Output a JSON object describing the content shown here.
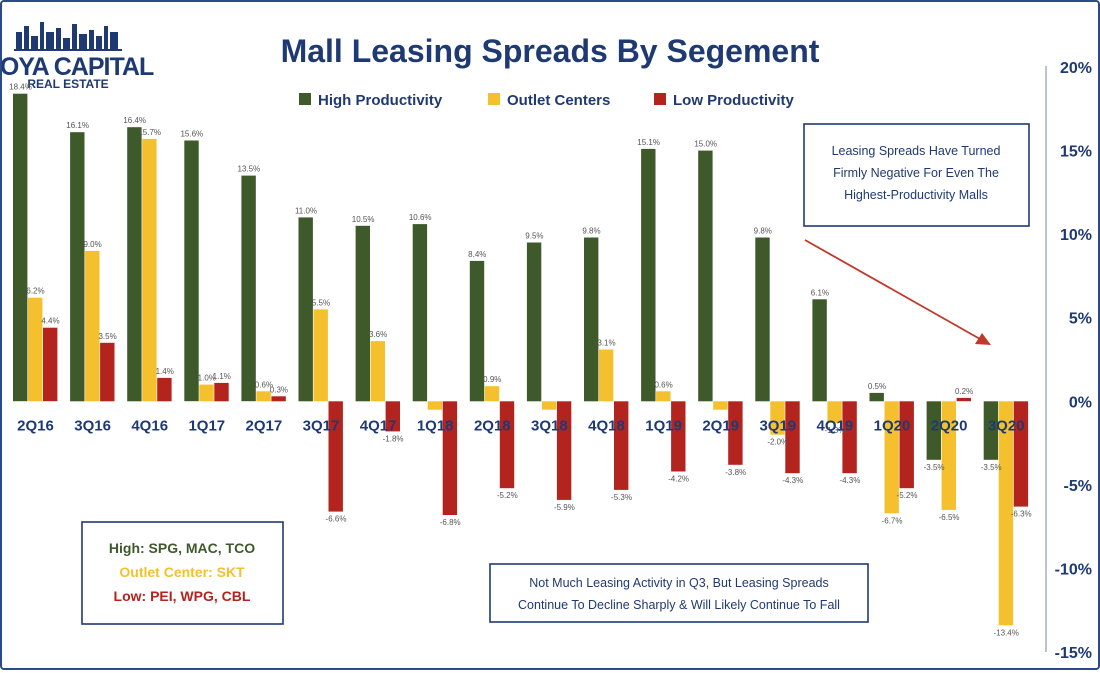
{
  "logo": {
    "main": "HOYA CAPITAL",
    "sub": "REAL ESTATE"
  },
  "colors": {
    "high": "#3f5a2a",
    "outlet": "#f4c02e",
    "low": "#b3241f",
    "navy": "#1f3a73",
    "arrow": "#c0392b"
  },
  "key_box": {
    "high": "High: SPG, MAC, TCO",
    "outlet": "Outlet Center: SKT",
    "low": "Low: PEI, WPG, CBL"
  },
  "note_top": {
    "line1": "Leasing Spreads Have Turned",
    "line2": "Firmly Negative For Even The",
    "line3": "Highest-Productivity Malls"
  },
  "note_bottom": {
    "line1": "Not Much Leasing Activity in Q3, But Leasing Spreads",
    "line2": "Continue To Decline Sharply & Will Likely Continue To Fall"
  },
  "chart_data": {
    "type": "bar",
    "title": "Mall Leasing Spreads By Segement",
    "categories": [
      "2Q16",
      "3Q16",
      "4Q16",
      "1Q17",
      "2Q17",
      "3Q17",
      "4Q17",
      "1Q18",
      "2Q18",
      "3Q18",
      "4Q18",
      "1Q19",
      "2Q19",
      "3Q19",
      "4Q19",
      "1Q20",
      "2Q20",
      "3Q20"
    ],
    "series": [
      {
        "name": "High Productivity",
        "values": [
          18.4,
          16.1,
          16.4,
          15.6,
          13.5,
          11.0,
          10.5,
          10.6,
          8.4,
          9.5,
          9.8,
          15.1,
          15.0,
          9.8,
          6.1,
          0.5,
          -3.5,
          -3.5
        ],
        "labels": [
          "18.4%",
          "16.1%",
          "16.4%",
          "15.6%",
          "13.5%",
          "11.0%",
          "10.5%",
          "10.6%",
          "8.4%",
          "9.5%",
          "9.8%",
          "15.1%",
          "15.0%",
          "9.8%",
          "6.1%",
          "0.5%",
          "-3.5%",
          "-3.5%"
        ]
      },
      {
        "name": "Outlet Centers",
        "values": [
          6.2,
          9.0,
          15.7,
          1.0,
          0.6,
          5.5,
          3.6,
          -0.5,
          0.9,
          -0.5,
          3.1,
          0.6,
          -0.5,
          -2.0,
          -1.3,
          -6.7,
          -6.5,
          -13.4
        ],
        "labels": [
          "6.2%",
          "9.0%",
          "15.7%",
          "1.0%",
          "0.6%",
          "5.5%",
          "3.6%",
          "",
          "0.9%",
          "",
          "3.1%",
          "0.6%",
          "",
          "-2.0%",
          "-1.3%",
          "-6.7%",
          "-6.5%",
          "-13.4%"
        ]
      },
      {
        "name": "Low Productivity",
        "values": [
          4.4,
          3.5,
          1.4,
          1.1,
          0.3,
          -6.6,
          -1.8,
          -6.8,
          -5.2,
          -5.9,
          -5.3,
          -4.2,
          -3.8,
          -4.3,
          -4.3,
          -5.2,
          0.2,
          -6.3
        ],
        "labels": [
          "4.4%",
          "3.5%",
          "1.4%",
          "1.1%",
          "0.3%",
          "-6.6%",
          "-1.8%",
          "-6.8%",
          "-5.2%",
          "-5.9%",
          "-5.3%",
          "-4.2%",
          "-3.8%",
          "-4.3%",
          "-4.3%",
          "-5.2%",
          "0.2%",
          "-6.3%"
        ]
      }
    ],
    "ylim": [
      -15,
      20
    ],
    "yticks": [
      20,
      15,
      10,
      5,
      0,
      -5,
      -10,
      -15
    ],
    "ytick_labels": [
      "20%",
      "15%",
      "10%",
      "5%",
      "0%",
      "-5%",
      "-10%",
      "-15%"
    ],
    "y_axis_side": "right",
    "legend": "top",
    "grid": false
  }
}
